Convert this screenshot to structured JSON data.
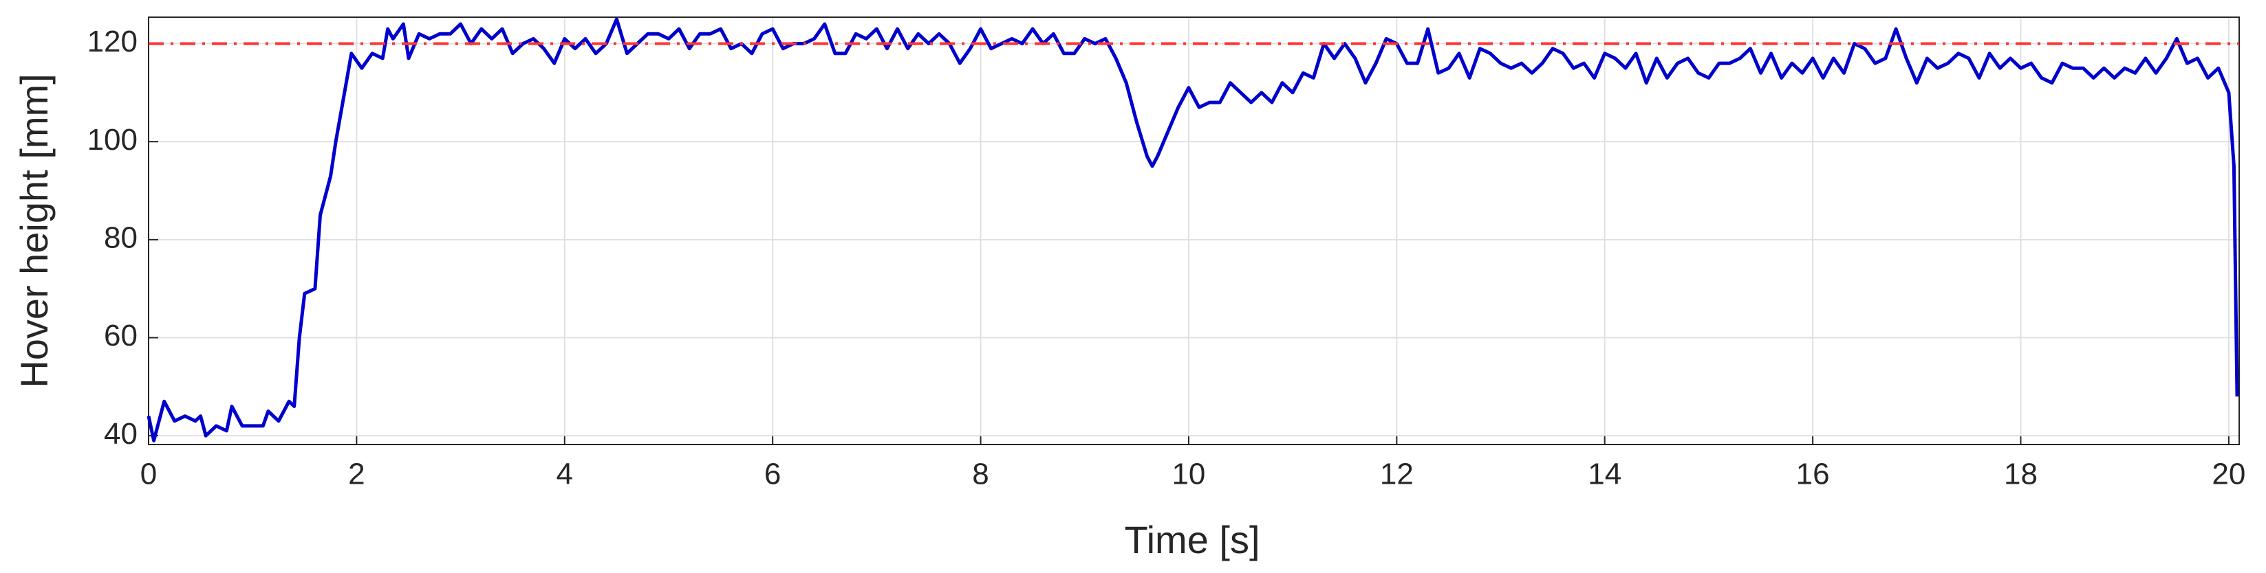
{
  "chart_data": {
    "type": "line",
    "xlabel": "Time [s]",
    "ylabel": "Hover height [mm]",
    "color": "#0000cc",
    "reference_line": {
      "value": 120,
      "color": "#ff3333"
    },
    "grid": true,
    "xlim": [
      0,
      20.1
    ],
    "ylim": [
      38.2,
      125.4
    ],
    "xticks": [
      0,
      2,
      4,
      6,
      8,
      10,
      12,
      14,
      16,
      18,
      20
    ],
    "yticks": [
      40,
      60,
      80,
      100,
      120
    ],
    "x": [
      0,
      0.05,
      0.15,
      0.25,
      0.35,
      0.45,
      0.5,
      0.55,
      0.65,
      0.75,
      0.8,
      0.9,
      1.0,
      1.1,
      1.15,
      1.25,
      1.35,
      1.4,
      1.45,
      1.5,
      1.6,
      1.65,
      1.75,
      1.8,
      1.9,
      1.95,
      2.05,
      2.15,
      2.25,
      2.3,
      2.35,
      2.45,
      2.5,
      2.6,
      2.7,
      2.8,
      2.9,
      3.0,
      3.1,
      3.2,
      3.3,
      3.4,
      3.5,
      3.6,
      3.7,
      3.8,
      3.9,
      4.0,
      4.1,
      4.2,
      4.3,
      4.4,
      4.5,
      4.6,
      4.7,
      4.8,
      4.9,
      5.0,
      5.1,
      5.2,
      5.3,
      5.4,
      5.5,
      5.6,
      5.7,
      5.8,
      5.9,
      6.0,
      6.1,
      6.2,
      6.3,
      6.4,
      6.5,
      6.6,
      6.7,
      6.8,
      6.9,
      7.0,
      7.1,
      7.2,
      7.3,
      7.4,
      7.5,
      7.6,
      7.7,
      7.8,
      7.9,
      8.0,
      8.1,
      8.2,
      8.3,
      8.4,
      8.5,
      8.6,
      8.7,
      8.8,
      8.9,
      9.0,
      9.1,
      9.2,
      9.3,
      9.4,
      9.5,
      9.6,
      9.65,
      9.7,
      9.8,
      9.9,
      10.0,
      10.1,
      10.2,
      10.3,
      10.4,
      10.5,
      10.6,
      10.7,
      10.8,
      10.9,
      11.0,
      11.1,
      11.2,
      11.3,
      11.4,
      11.5,
      11.6,
      11.7,
      11.8,
      11.9,
      12.0,
      12.1,
      12.2,
      12.3,
      12.4,
      12.5,
      12.6,
      12.7,
      12.8,
      12.9,
      13.0,
      13.1,
      13.2,
      13.3,
      13.4,
      13.5,
      13.6,
      13.7,
      13.8,
      13.9,
      14.0,
      14.1,
      14.2,
      14.3,
      14.4,
      14.5,
      14.6,
      14.7,
      14.8,
      14.9,
      15.0,
      15.1,
      15.2,
      15.3,
      15.4,
      15.5,
      15.6,
      15.7,
      15.8,
      15.9,
      16.0,
      16.1,
      16.2,
      16.3,
      16.4,
      16.5,
      16.6,
      16.7,
      16.8,
      16.9,
      17.0,
      17.1,
      17.2,
      17.3,
      17.4,
      17.5,
      17.6,
      17.7,
      17.8,
      17.9,
      18.0,
      18.1,
      18.2,
      18.3,
      18.4,
      18.5,
      18.6,
      18.7,
      18.8,
      18.9,
      19.0,
      19.1,
      19.2,
      19.3,
      19.4,
      19.5,
      19.6,
      19.7,
      19.8,
      19.9,
      20.0,
      20.05,
      20.08
    ],
    "values": [
      44,
      39,
      47,
      43,
      44,
      43,
      44,
      40,
      42,
      41,
      46,
      42,
      42,
      42,
      45,
      43,
      47,
      46,
      60,
      69,
      70,
      85,
      93,
      100,
      112,
      118,
      115,
      118,
      117,
      123,
      121,
      124,
      117,
      122,
      121,
      122,
      122,
      124,
      120,
      123,
      121,
      123,
      118,
      120,
      121,
      119,
      116,
      121,
      119,
      121,
      118,
      120,
      125,
      118,
      120,
      122,
      122,
      121,
      123,
      119,
      122,
      122,
      123,
      119,
      120,
      118,
      122,
      123,
      119,
      120,
      120,
      121,
      124,
      118,
      118,
      122,
      121,
      123,
      119,
      123,
      119,
      122,
      120,
      122,
      120,
      116,
      119,
      123,
      119,
      120,
      121,
      120,
      123,
      120,
      122,
      118,
      118,
      121,
      120,
      121,
      117,
      112,
      104,
      97,
      95,
      97,
      102,
      107,
      111,
      107,
      108,
      108,
      112,
      110,
      108,
      110,
      108,
      112,
      110,
      114,
      113,
      120,
      117,
      120,
      117,
      112,
      116,
      121,
      120,
      116,
      116,
      123,
      114,
      115,
      118,
      113,
      119,
      118,
      116,
      115,
      116,
      114,
      116,
      119,
      118,
      115,
      116,
      113,
      118,
      117,
      115,
      118,
      112,
      117,
      113,
      116,
      117,
      114,
      113,
      116,
      116,
      117,
      119,
      114,
      118,
      113,
      116,
      114,
      117,
      113,
      117,
      114,
      120,
      119,
      116,
      117,
      123,
      117,
      112,
      117,
      115,
      116,
      118,
      117,
      113,
      118,
      115,
      117,
      115,
      116,
      113,
      112,
      116,
      115,
      115,
      113,
      115,
      113,
      115,
      114,
      117,
      114,
      117,
      121,
      116,
      117,
      113,
      115,
      110,
      95,
      48
    ]
  }
}
